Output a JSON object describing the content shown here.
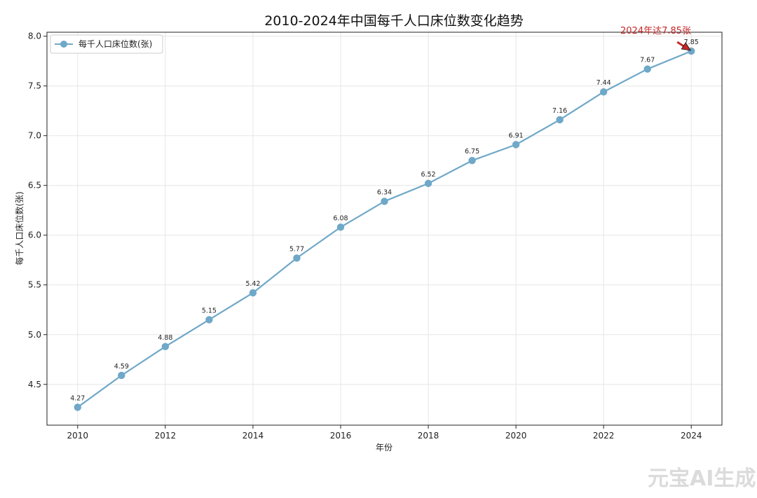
{
  "chart_data": {
    "type": "line",
    "title": "2010-2024年中国每千人口床位数变化趋势",
    "xlabel": "年份",
    "ylabel": "每千人口床位数(张)",
    "x": [
      2010,
      2011,
      2012,
      2013,
      2014,
      2015,
      2016,
      2017,
      2018,
      2019,
      2020,
      2021,
      2022,
      2023,
      2024
    ],
    "series": [
      {
        "name": "每千人口床位数(张)",
        "values": [
          4.27,
          4.59,
          4.88,
          5.15,
          5.42,
          5.77,
          6.08,
          6.34,
          6.52,
          6.75,
          6.91,
          7.16,
          7.44,
          7.67,
          7.85
        ],
        "color": "#6fa8c8"
      }
    ],
    "data_labels": [
      "4.27",
      "4.59",
      "4.88",
      "5.15",
      "5.42",
      "5.77",
      "6.08",
      "6.34",
      "6.52",
      "6.75",
      "6.91",
      "7.16",
      "7.44",
      "7.67",
      "7.85"
    ],
    "xticks": [
      2010,
      2012,
      2014,
      2016,
      2018,
      2020,
      2022,
      2024
    ],
    "xtick_labels": [
      "2010",
      "2012",
      "2014",
      "2016",
      "2018",
      "2020",
      "2022",
      "2024"
    ],
    "yticks": [
      4.5,
      5.0,
      5.5,
      6.0,
      6.5,
      7.0,
      7.5,
      8.0
    ],
    "ytick_labels": [
      "4.5",
      "5.0",
      "5.5",
      "6.0",
      "6.5",
      "7.0",
      "7.5",
      "8.0"
    ],
    "xlim": [
      2009.3,
      2024.7
    ],
    "ylim": [
      4.09,
      8.04
    ],
    "grid": true,
    "legend_position": "top-left",
    "annotation": {
      "text": "2024年达7.85张",
      "x": 2024,
      "y": 7.85,
      "color": "#c62828"
    }
  },
  "watermark": "元宝AI生成"
}
